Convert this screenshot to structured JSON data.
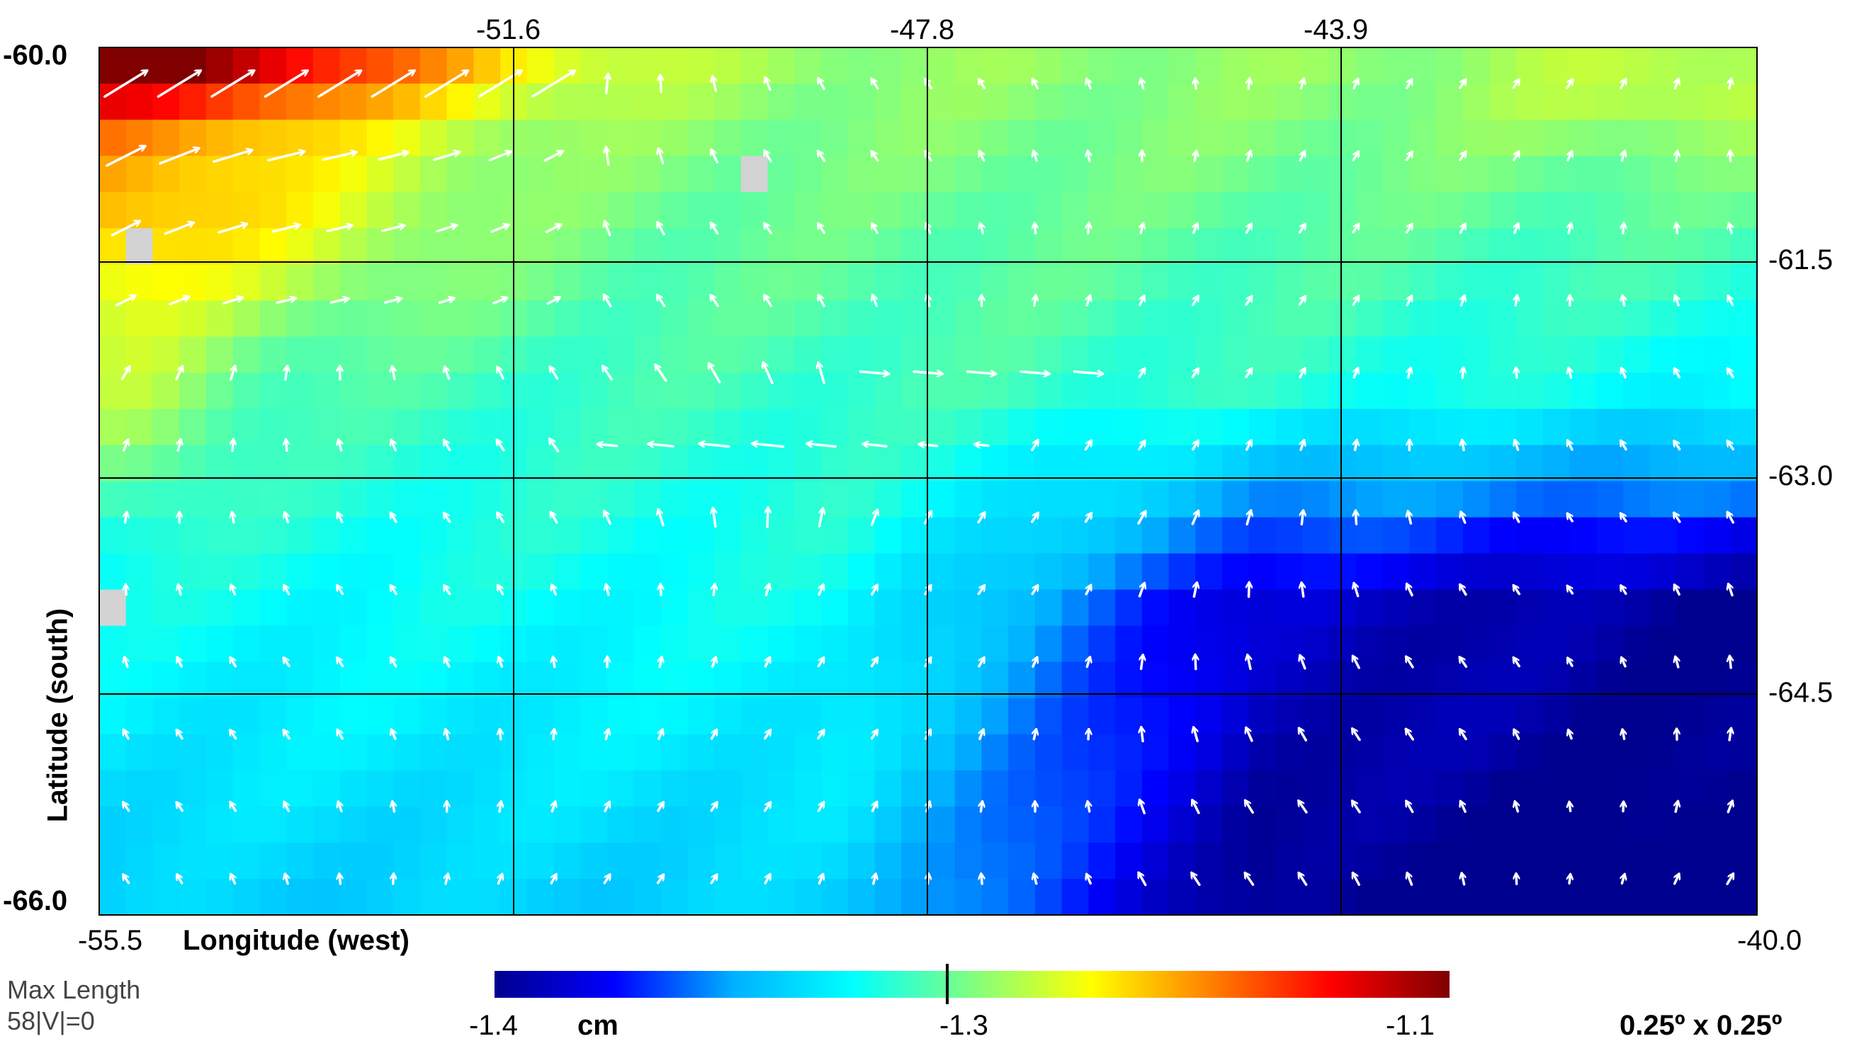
{
  "map": {
    "top_lon_ticks": [
      "-51.6",
      "-47.8",
      "-43.9"
    ],
    "right_lat_ticks": [
      "-61.5",
      "-63.0",
      "-64.5"
    ],
    "corner_top_left": "-60.0",
    "corner_bottom_left": "-66.0",
    "corner_bottom_lon_left": "-55.5",
    "corner_bottom_lon_right": "-40.0",
    "x_axis_label": "Longitude (west)",
    "y_axis_label": "Latitude (south)",
    "lon_range": [
      -55.5,
      -40.0
    ],
    "lat_range": [
      -60.0,
      -66.0
    ],
    "grid_resolution": "0.25º x 0.25º",
    "missing_cell_color": "#d3d3d3",
    "vector_color": "#ffffff",
    "gridline_color": "#000000"
  },
  "colorbar": {
    "tick_left": "-1.4",
    "tick_mid": "-1.3",
    "tick_right": "-1.1",
    "unit": "cm",
    "range": [
      -1.4,
      -1.1
    ],
    "stops": [
      "#00008f",
      "#0000ff",
      "#00b0ff",
      "#00ffff",
      "#80ff80",
      "#ffff00",
      "#ff8000",
      "#ff0000",
      "#800000"
    ]
  },
  "legend_note": {
    "line1": "Max Length",
    "line2": "58|V|=0"
  }
}
